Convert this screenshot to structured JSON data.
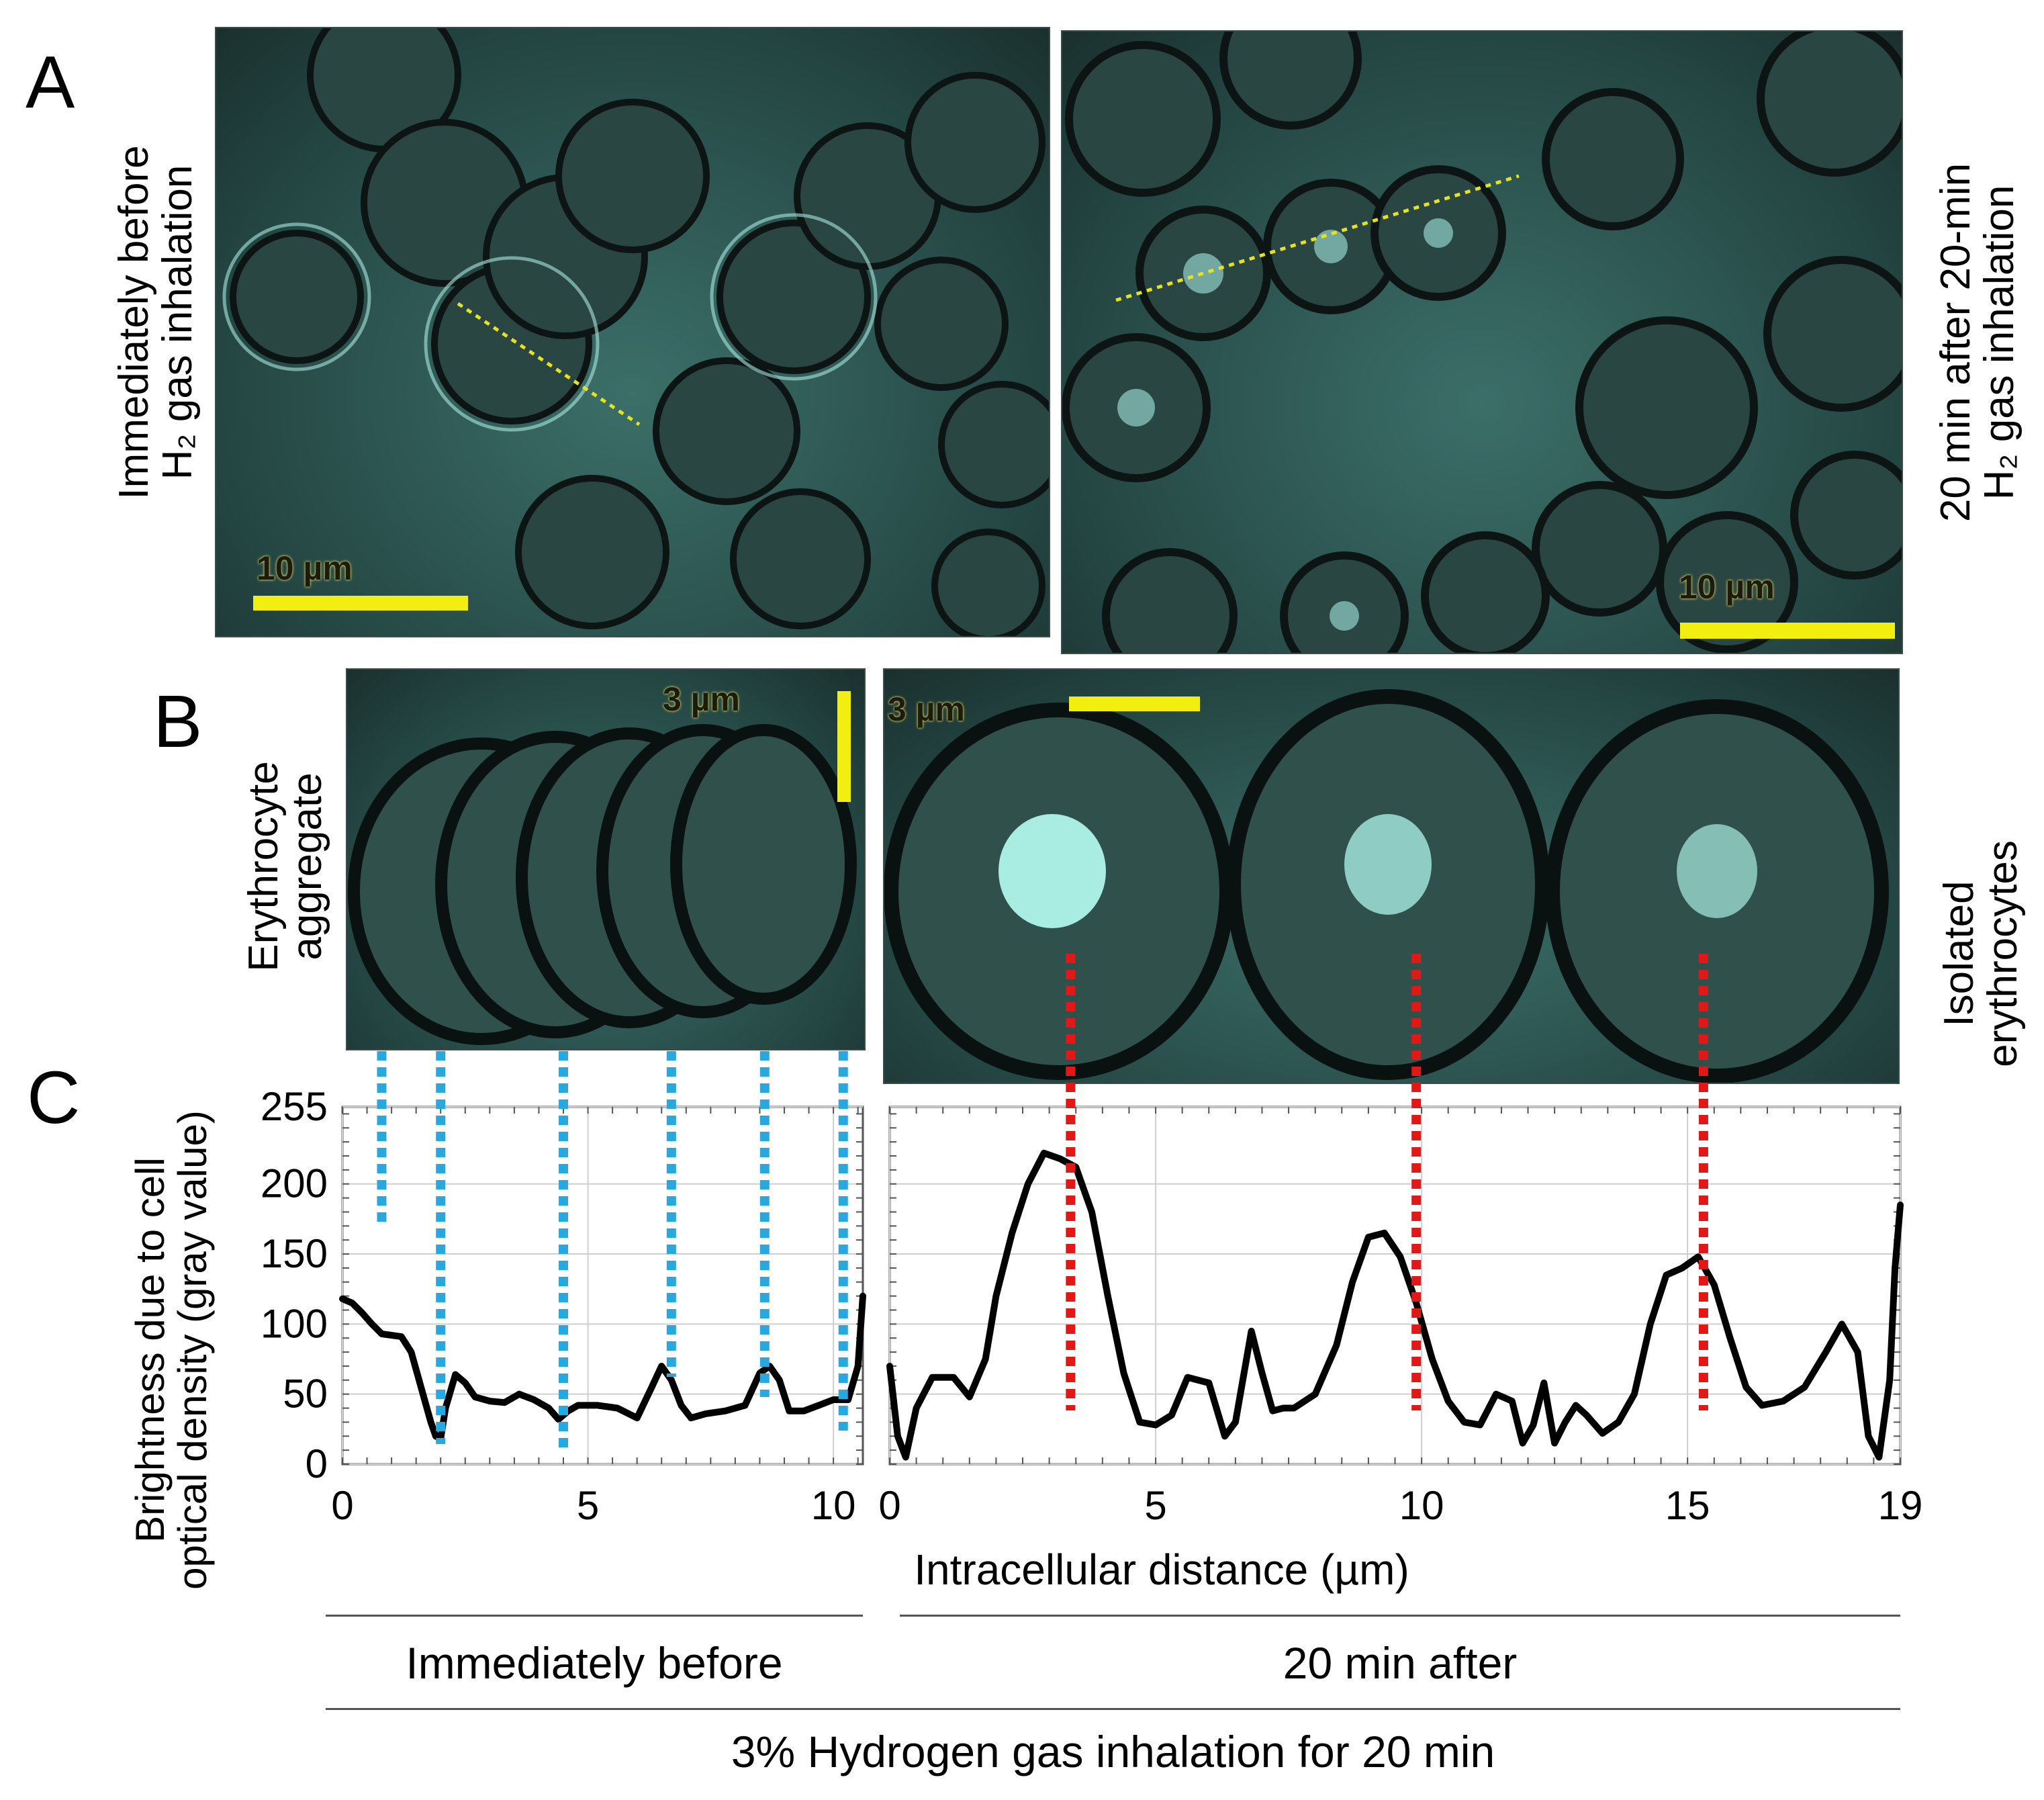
{
  "panels": {
    "A": {
      "letter": "A",
      "left_label_line1": "Immediately before",
      "left_label_line2": "H₂ gas inhalation",
      "right_label_line1": "20 min after 20-min",
      "right_label_line2": "H₂ gas inhalation",
      "left_scale": "10 µm",
      "right_scale": "10 µm"
    },
    "B": {
      "letter": "B",
      "left_label_line1": "Erythrocyte",
      "left_label_line2": "aggregate",
      "right_label_line1": "Isolated",
      "right_label_line2": "erythrocytes",
      "left_scale": "3 µm",
      "right_scale": "3 µm"
    },
    "C": {
      "letter": "C",
      "ylabel_line1": "Brightness due to cell",
      "ylabel_line2": "optical density (gray value)",
      "xlabel": "Intracellular distance (µm)",
      "group_left": "Immediately before",
      "group_right": "20 min after",
      "group_all": "3% Hydrogen gas inhalation for 20 min"
    }
  },
  "colors": {
    "curve": "#000000",
    "before_markers": "#29a8e0",
    "after_markers": "#e01818",
    "scale_bar": "#f1ee10",
    "micrograph_tint": "#2e5e5a"
  },
  "chart_data": [
    {
      "type": "line",
      "title": "Immediately before",
      "ylabel": "Brightness due to cell optical density (gray value)",
      "xlabel": "Intracellular distance (µm)",
      "xlim": [
        0,
        10.6
      ],
      "ylim": [
        0,
        255
      ],
      "xticks": [
        0,
        5,
        10
      ],
      "yticks": [
        0,
        50,
        100,
        150,
        200,
        255
      ],
      "grid": true,
      "series": [
        {
          "x": [
            0,
            0.2,
            0.4,
            0.6,
            0.8,
            1.0,
            1.2,
            1.4,
            1.6,
            1.8,
            1.9,
            2.0,
            2.1,
            2.3,
            2.5,
            2.7,
            3.0,
            3.3,
            3.6,
            3.9,
            4.2,
            4.4,
            4.6,
            4.8,
            5.2,
            5.6,
            6.0,
            6.3,
            6.5,
            6.7,
            6.9,
            7.1,
            7.4,
            7.8,
            8.2,
            8.5,
            8.7,
            8.9,
            9.1,
            9.4,
            9.7,
            10.0,
            10.3,
            10.5,
            10.6
          ],
          "y": [
            118,
            115,
            108,
            100,
            93,
            92,
            91,
            80,
            55,
            30,
            20,
            18,
            40,
            64,
            58,
            48,
            45,
            44,
            50,
            46,
            40,
            32,
            38,
            42,
            42,
            40,
            33,
            55,
            70,
            60,
            42,
            33,
            36,
            38,
            42,
            65,
            70,
            60,
            38,
            38,
            42,
            46,
            46,
            70,
            120
          ]
        }
      ],
      "markers_x": [
        0.8,
        2.0,
        4.5,
        6.7,
        8.6,
        10.2
      ],
      "marker_color": "#29a8e0"
    },
    {
      "type": "line",
      "title": "20 min after",
      "xlabel": "Intracellular distance (µm)",
      "xlim": [
        0,
        19
      ],
      "ylim": [
        0,
        255
      ],
      "xticks": [
        0,
        5,
        10,
        15,
        19
      ],
      "yticks": [
        0,
        50,
        100,
        150,
        200,
        255
      ],
      "grid": true,
      "series": [
        {
          "x": [
            0,
            0.15,
            0.3,
            0.5,
            0.8,
            1.2,
            1.5,
            1.8,
            2.0,
            2.3,
            2.6,
            2.9,
            3.2,
            3.5,
            3.8,
            4.1,
            4.4,
            4.7,
            5.0,
            5.3,
            5.6,
            6.0,
            6.3,
            6.5,
            6.8,
            7.0,
            7.2,
            7.4,
            7.6,
            8.0,
            8.4,
            8.7,
            9.0,
            9.3,
            9.6,
            9.9,
            10.2,
            10.5,
            10.8,
            11.1,
            11.4,
            11.7,
            11.9,
            12.1,
            12.3,
            12.5,
            12.7,
            12.9,
            13.1,
            13.4,
            13.7,
            14.0,
            14.3,
            14.6,
            14.9,
            15.2,
            15.5,
            15.8,
            16.1,
            16.4,
            16.8,
            17.2,
            17.6,
            17.9,
            18.2,
            18.4,
            18.6,
            18.8,
            18.9,
            19.0
          ],
          "y": [
            70,
            20,
            5,
            40,
            62,
            62,
            48,
            75,
            120,
            165,
            200,
            222,
            218,
            212,
            180,
            120,
            65,
            30,
            28,
            35,
            62,
            58,
            20,
            30,
            95,
            65,
            38,
            40,
            40,
            50,
            85,
            130,
            162,
            165,
            148,
            115,
            75,
            45,
            30,
            28,
            50,
            45,
            15,
            28,
            58,
            15,
            30,
            42,
            35,
            22,
            30,
            50,
            100,
            135,
            140,
            148,
            128,
            90,
            55,
            42,
            45,
            55,
            80,
            100,
            80,
            20,
            5,
            60,
            140,
            185
          ]
        }
      ],
      "markers_x": [
        3.4,
        9.9,
        15.3
      ],
      "marker_color": "#e01818"
    }
  ]
}
